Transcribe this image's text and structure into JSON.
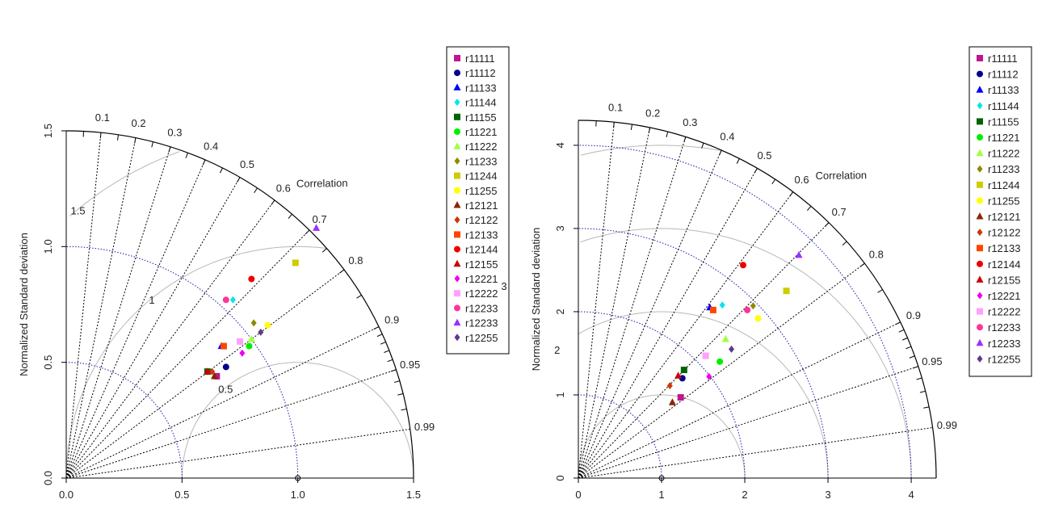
{
  "colors": {
    "arc": "#000000",
    "sd_arc": "#1a1aa8",
    "rms": "#b8b8b8",
    "corr_ray": "#000000",
    "legend_border": "#000000"
  },
  "chart_data": [
    {
      "type": "scatter",
      "subtype": "taylor-diagram",
      "ylabel": "Normalized Standard deviation",
      "corr_label": "Correlation",
      "sd_max": 1.5,
      "x_ticks": [
        "0.0",
        "0.5",
        "1.0",
        "1.5"
      ],
      "y_ticks": [
        "0.0",
        "0.5",
        "1.0",
        "1.5"
      ],
      "corr_ticks": [
        "0.1",
        "0.2",
        "0.3",
        "0.4",
        "0.5",
        "0.6",
        "0.7",
        "0.8",
        "0.9",
        "0.95",
        "0.99"
      ],
      "sd_arcs": [
        0.5,
        1.0
      ],
      "rms_arcs": [
        0.5,
        1.0,
        1.5
      ],
      "rms_labels": [
        "0.5",
        "1",
        "1.5"
      ],
      "legend_placement": "right",
      "series": [
        {
          "name": "r11111",
          "color": "#c0168f",
          "marker": "square",
          "x": 0.65,
          "y": 0.44
        },
        {
          "name": "r11112",
          "color": "#00008b",
          "marker": "circle",
          "x": 0.69,
          "y": 0.48
        },
        {
          "name": "r11133",
          "color": "#0000ff",
          "marker": "triangle",
          "x": 0.67,
          "y": 0.57
        },
        {
          "name": "r11144",
          "color": "#00e5ee",
          "marker": "diamond",
          "x": 0.72,
          "y": 0.77
        },
        {
          "name": "r11155",
          "color": "#006400",
          "marker": "square",
          "x": 0.61,
          "y": 0.46
        },
        {
          "name": "r11221",
          "color": "#00ee00",
          "marker": "circle",
          "x": 0.79,
          "y": 0.57
        },
        {
          "name": "r11222",
          "color": "#a0ff40",
          "marker": "triangle",
          "x": 0.8,
          "y": 0.6
        },
        {
          "name": "r11233",
          "color": "#8b8b00",
          "marker": "diamond",
          "x": 0.81,
          "y": 0.67
        },
        {
          "name": "r11244",
          "color": "#cdcd00",
          "marker": "square",
          "x": 0.99,
          "y": 0.93
        },
        {
          "name": "r11255",
          "color": "#ffff00",
          "marker": "circle",
          "x": 0.87,
          "y": 0.66
        },
        {
          "name": "r12121",
          "color": "#8b2500",
          "marker": "triangle",
          "x": 0.64,
          "y": 0.44
        },
        {
          "name": "r12122",
          "color": "#cd3700",
          "marker": "diamond",
          "x": 0.63,
          "y": 0.46
        },
        {
          "name": "r12133",
          "color": "#ff4500",
          "marker": "square",
          "x": 0.68,
          "y": 0.57
        },
        {
          "name": "r12144",
          "color": "#ee0000",
          "marker": "circle",
          "x": 0.8,
          "y": 0.86
        },
        {
          "name": "r12155",
          "color": "#cd0000",
          "marker": "triangle",
          "x": 0.61,
          "y": 0.46
        },
        {
          "name": "r12221",
          "color": "#ee00ee",
          "marker": "diamond",
          "x": 0.76,
          "y": 0.54
        },
        {
          "name": "r12222",
          "color": "#ffa0ff",
          "marker": "square",
          "x": 0.75,
          "y": 0.59
        },
        {
          "name": "r12233",
          "color": "#ff3399",
          "marker": "circle",
          "x": 0.69,
          "y": 0.77
        },
        {
          "name": "r12233",
          "color": "#9b30ff",
          "marker": "triangle",
          "x": 1.08,
          "y": 1.08
        },
        {
          "name": "r12255",
          "color": "#5d3a8b",
          "marker": "diamond",
          "x": 0.84,
          "y": 0.63
        }
      ]
    },
    {
      "type": "scatter",
      "subtype": "taylor-diagram",
      "ylabel": "Normalized Standard deviation",
      "corr_label": "Correlation",
      "sd_max": 4.3,
      "x_ticks": [
        "0",
        "1",
        "2",
        "3",
        "4"
      ],
      "y_ticks": [
        "0",
        "1",
        "2",
        "3",
        "4"
      ],
      "corr_ticks": [
        "0.1",
        "0.2",
        "0.3",
        "0.4",
        "0.5",
        "0.6",
        "0.7",
        "0.8",
        "0.9",
        "0.95",
        "0.99"
      ],
      "sd_arcs": [
        1,
        2,
        3,
        4
      ],
      "rms_arcs": [
        1,
        2,
        3,
        4
      ],
      "rms_labels": [
        "2",
        "3"
      ],
      "legend_placement": "right",
      "series": [
        {
          "name": "r11111",
          "color": "#c0168f",
          "marker": "square",
          "x": 1.23,
          "y": 0.97
        },
        {
          "name": "r11112",
          "color": "#00008b",
          "marker": "circle",
          "x": 1.25,
          "y": 1.2
        },
        {
          "name": "r11133",
          "color": "#0000ff",
          "marker": "triangle",
          "x": 1.58,
          "y": 2.05
        },
        {
          "name": "r11144",
          "color": "#00e5ee",
          "marker": "diamond",
          "x": 1.73,
          "y": 2.08
        },
        {
          "name": "r11155",
          "color": "#006400",
          "marker": "square",
          "x": 1.27,
          "y": 1.3
        },
        {
          "name": "r11221",
          "color": "#00ee00",
          "marker": "circle",
          "x": 1.7,
          "y": 1.4
        },
        {
          "name": "r11222",
          "color": "#a0ff40",
          "marker": "triangle",
          "x": 1.77,
          "y": 1.67
        },
        {
          "name": "r11233",
          "color": "#8b8b00",
          "marker": "diamond",
          "x": 2.1,
          "y": 2.07
        },
        {
          "name": "r11244",
          "color": "#cdcd00",
          "marker": "square",
          "x": 2.5,
          "y": 2.25
        },
        {
          "name": "r11255",
          "color": "#ffff00",
          "marker": "circle",
          "x": 2.16,
          "y": 1.92
        },
        {
          "name": "r12121",
          "color": "#8b2500",
          "marker": "triangle",
          "x": 1.13,
          "y": 0.91
        },
        {
          "name": "r12122",
          "color": "#cd3700",
          "marker": "diamond",
          "x": 1.1,
          "y": 1.11
        },
        {
          "name": "r12133",
          "color": "#ff4500",
          "marker": "square",
          "x": 1.62,
          "y": 2.02
        },
        {
          "name": "r12144",
          "color": "#ee0000",
          "marker": "circle",
          "x": 1.98,
          "y": 2.56
        },
        {
          "name": "r12155",
          "color": "#cd0000",
          "marker": "triangle",
          "x": 1.2,
          "y": 1.23
        },
        {
          "name": "r12221",
          "color": "#ee00ee",
          "marker": "diamond",
          "x": 1.57,
          "y": 1.22
        },
        {
          "name": "r12222",
          "color": "#ffa0ff",
          "marker": "square",
          "x": 1.53,
          "y": 1.47
        },
        {
          "name": "r12233",
          "color": "#ff3399",
          "marker": "circle",
          "x": 2.03,
          "y": 2.02
        },
        {
          "name": "r12233",
          "color": "#9b30ff",
          "marker": "triangle",
          "x": 2.65,
          "y": 2.68
        },
        {
          "name": "r12255",
          "color": "#5d3a8b",
          "marker": "diamond",
          "x": 1.84,
          "y": 1.55
        }
      ]
    }
  ]
}
